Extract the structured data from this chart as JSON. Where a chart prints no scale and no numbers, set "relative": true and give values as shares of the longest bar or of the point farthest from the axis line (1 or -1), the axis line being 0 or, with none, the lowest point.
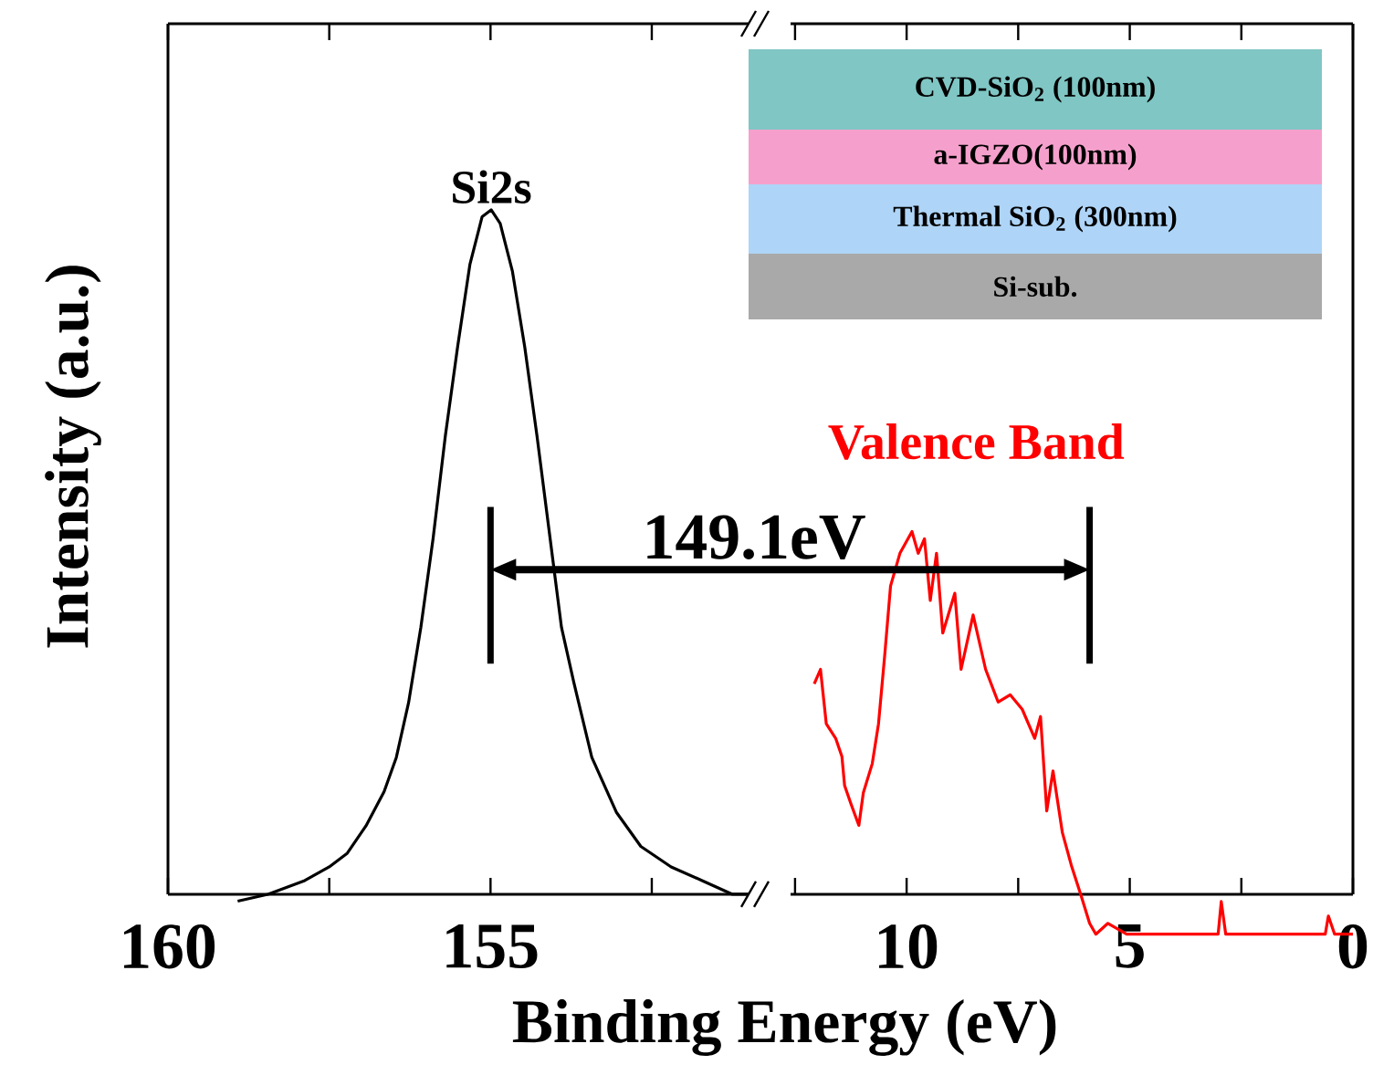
{
  "chart_data": [
    {
      "type": "line",
      "xlabel": "Binding Energy (eV)",
      "ylabel": "Intensity (a.u.)",
      "relative": true,
      "xlim": [
        160,
        151
      ],
      "xticks": [
        160,
        {
          "value": 157.5,
          "label": null
        },
        155,
        {
          "value": 152.5,
          "label": null
        }
      ],
      "x": [
        158.92,
        158.45,
        157.88,
        157.5,
        157.22,
        156.93,
        156.65,
        156.46,
        156.27,
        156.08,
        155.89,
        155.7,
        155.51,
        155.32,
        155.13,
        154.99,
        154.85,
        154.66,
        154.47,
        154.28,
        154.09,
        153.9,
        153.71,
        153.43,
        153.05,
        152.67,
        152.2,
        151.72,
        151.25,
        151.0
      ],
      "series": [
        {
          "name": "Si2s",
          "color": "#000000",
          "values": [
            -0.01,
            0,
            0.02,
            0.04,
            0.06,
            0.1,
            0.15,
            0.2,
            0.28,
            0.39,
            0.52,
            0.67,
            0.8,
            0.92,
            0.99,
            1,
            0.98,
            0.91,
            0.8,
            0.67,
            0.53,
            0.39,
            0.31,
            0.2,
            0.12,
            0.07,
            0.04,
            0.02,
            0,
            0
          ]
        }
      ],
      "ref_lines": [
        {
          "axis": "x",
          "value": 155
        }
      ],
      "annotations": [
        "149.1eV"
      ]
    },
    {
      "type": "line",
      "relative": true,
      "xlim": [
        12.6,
        0
      ],
      "xticks": [
        {
          "value": 12.5,
          "label": null
        },
        10,
        {
          "value": 7.5,
          "label": null
        },
        5,
        {
          "value": 2.5,
          "label": null
        },
        0
      ],
      "x": [
        12.07,
        11.93,
        11.8,
        11.59,
        11.45,
        11.39,
        11.25,
        11.07,
        10.97,
        10.77,
        10.63,
        10.49,
        10.36,
        10.15,
        9.88,
        9.74,
        9.6,
        9.47,
        9.33,
        9.19,
        8.92,
        8.78,
        8.51,
        8.23,
        7.95,
        7.68,
        7.41,
        7.13,
        7.0,
        6.86,
        6.72,
        6.51,
        6.31,
        6.1,
        5.9,
        5.76,
        5.49,
        5.07,
        4.39,
        3.57,
        3.02,
        2.95,
        2.85,
        2.06,
        1.65,
        0.62,
        0.55,
        0.41,
        0.0
      ],
      "series": [
        {
          "name": "Valence Band",
          "color": "#ff0000",
          "values": [
            0.58,
            0.62,
            0.47,
            0.43,
            0.38,
            0.3,
            0.25,
            0.19,
            0.28,
            0.36,
            0.47,
            0.66,
            0.85,
            0.94,
            1,
            0.94,
            0.98,
            0.81,
            0.94,
            0.72,
            0.83,
            0.62,
            0.77,
            0.62,
            0.53,
            0.55,
            0.51,
            0.43,
            0.49,
            0.23,
            0.34,
            0.17,
            0.08,
            0,
            -0.08,
            -0.11,
            -0.08,
            -0.11,
            -0.11,
            -0.11,
            -0.11,
            -0.02,
            -0.11,
            -0.11,
            -0.11,
            -0.11,
            -0.06,
            -0.11,
            -0.11
          ]
        }
      ],
      "ref_lines": [
        {
          "axis": "x",
          "value": 5.9
        }
      ],
      "annotations": [
        "CVD-SiO$_{2}$ (100nm)",
        "a-IGZO(100nm)",
        "Thermal SiO$_{2}$ (300nm)",
        "Si-sub."
      ]
    }
  ]
}
